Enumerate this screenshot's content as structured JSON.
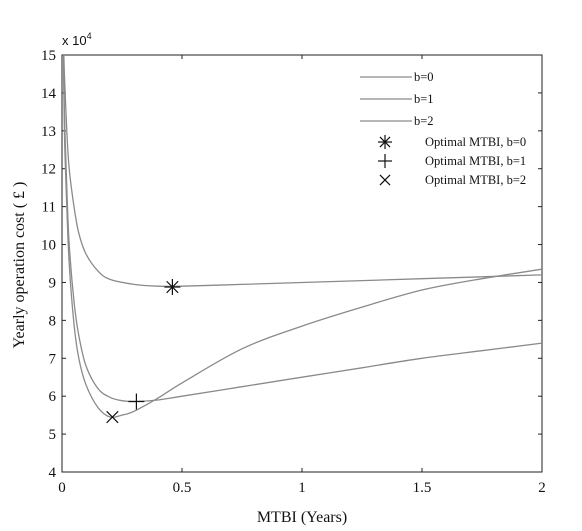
{
  "chart_data": {
    "type": "line",
    "title": "",
    "xlabel": "MTBI (Years)",
    "ylabel": "Yearly operation cost ( £ )",
    "y_multiplier_text": "x 10",
    "y_multiplier_exponent": "4",
    "xlim": [
      0,
      2
    ],
    "ylim": [
      4,
      15
    ],
    "xticks": [
      0,
      0.5,
      1,
      1.5,
      2
    ],
    "xtick_labels": [
      "0",
      "0.5",
      "1",
      "1.5",
      "2"
    ],
    "yticks": [
      4,
      5,
      6,
      7,
      8,
      9,
      10,
      11,
      12,
      13,
      14,
      15
    ],
    "ytick_labels": [
      "4",
      "5",
      "6",
      "7",
      "8",
      "9",
      "10",
      "11",
      "12",
      "13",
      "14",
      "15"
    ],
    "grid": false,
    "legend_position": "top-right",
    "line_color": "#8a8a8a",
    "series": [
      {
        "name": "b=0",
        "x": [
          0.01,
          0.02,
          0.03,
          0.05,
          0.07,
          0.1,
          0.15,
          0.2,
          0.3,
          0.4,
          0.5,
          0.75,
          1.0,
          1.25,
          1.5,
          1.75,
          2.0
        ],
        "values": [
          14.5,
          13.0,
          12.0,
          11.0,
          10.3,
          9.75,
          9.3,
          9.08,
          8.95,
          8.9,
          8.9,
          8.95,
          9.0,
          9.05,
          9.1,
          9.15,
          9.2
        ]
      },
      {
        "name": "b=1",
        "x": [
          0.01,
          0.02,
          0.03,
          0.05,
          0.07,
          0.1,
          0.15,
          0.2,
          0.25,
          0.3,
          0.4,
          0.5,
          0.75,
          1.0,
          1.25,
          1.5,
          1.75,
          2.0
        ],
        "values": [
          13.5,
          11.5,
          10.0,
          8.5,
          7.6,
          6.8,
          6.2,
          5.97,
          5.88,
          5.86,
          5.9,
          6.0,
          6.25,
          6.5,
          6.75,
          7.0,
          7.2,
          7.4
        ]
      },
      {
        "name": "b=2",
        "x": [
          0.01,
          0.02,
          0.03,
          0.05,
          0.07,
          0.1,
          0.15,
          0.2,
          0.25,
          0.3,
          0.4,
          0.5,
          0.75,
          1.0,
          1.25,
          1.5,
          1.75,
          2.0
        ],
        "values": [
          13.0,
          11.0,
          9.5,
          7.9,
          7.0,
          6.3,
          5.7,
          5.45,
          5.5,
          5.6,
          5.95,
          6.35,
          7.25,
          7.85,
          8.35,
          8.8,
          9.1,
          9.35
        ]
      }
    ],
    "optima": [
      {
        "name": "Optimal MTBI, b=0",
        "marker": "asterisk",
        "x": 0.46,
        "y": 8.88
      },
      {
        "name": "Optimal MTBI, b=1",
        "marker": "plus",
        "x": 0.31,
        "y": 5.86
      },
      {
        "name": "Optimal MTBI, b=2",
        "marker": "cross",
        "x": 0.21,
        "y": 5.45
      }
    ]
  }
}
